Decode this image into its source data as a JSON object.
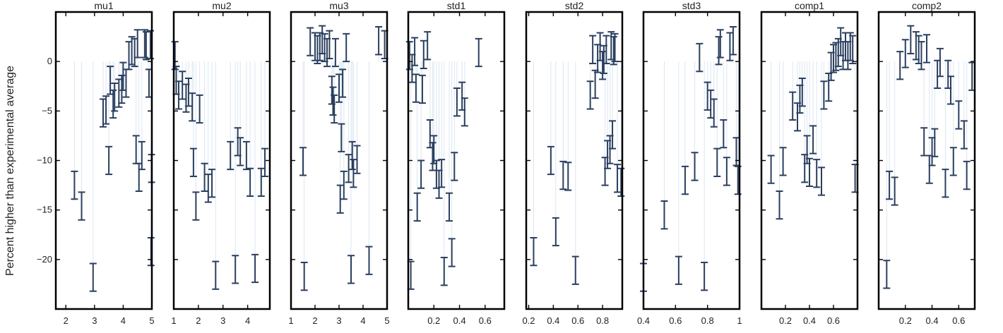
{
  "chart_data": {
    "type": "scatter",
    "title": "",
    "ylabel": "Percent higher than experimental average",
    "ylim": [
      -25,
      5
    ],
    "yticks": [
      0,
      -5,
      -10,
      -15,
      -20
    ],
    "error_bar_halfwidth": 1.4,
    "colors": {
      "marker": "#2a3f5f",
      "stem": "#dce6f2",
      "frame": "#000000"
    },
    "grid": false,
    "panels": [
      {
        "name": "mu1",
        "xlim": [
          1.65,
          5.0
        ],
        "xticks": [
          2,
          3,
          4,
          5
        ],
        "points": [
          [
            2.3,
            -12.5
          ],
          [
            2.55,
            -14.6
          ],
          [
            2.95,
            -21.8
          ],
          [
            3.3,
            -5.2
          ],
          [
            3.4,
            -4.9
          ],
          [
            3.5,
            -10
          ],
          [
            3.55,
            -1.9
          ],
          [
            3.65,
            -4.3
          ],
          [
            3.7,
            -3.6
          ],
          [
            3.85,
            -3.2
          ],
          [
            3.95,
            -2.8
          ],
          [
            4.0,
            -1.5
          ],
          [
            4.1,
            -2.2
          ],
          [
            4.2,
            0.6
          ],
          [
            4.3,
            1.1
          ],
          [
            4.4,
            0.9
          ],
          [
            4.45,
            -8.9
          ],
          [
            4.5,
            1.8
          ],
          [
            4.55,
            -11.7
          ],
          [
            4.65,
            -9.5
          ],
          [
            4.75,
            1.8
          ],
          [
            4.8,
            1.6
          ],
          [
            4.9,
            -2.2
          ],
          [
            4.95,
            1.7
          ],
          [
            4.97,
            -19.2
          ],
          [
            4.99,
            -10.8
          ]
        ]
      },
      {
        "name": "mu2",
        "xlim": [
          1.0,
          4.9
        ],
        "xticks": [
          1,
          2,
          3,
          4
        ],
        "points": [
          [
            1.05,
            0.6
          ],
          [
            1.1,
            -1.9
          ],
          [
            1.2,
            -3.4
          ],
          [
            1.35,
            -2.4
          ],
          [
            1.5,
            -3.7
          ],
          [
            1.6,
            -3.1
          ],
          [
            1.75,
            -4.6
          ],
          [
            1.8,
            -10.2
          ],
          [
            1.9,
            -14.6
          ],
          [
            2.05,
            -4.8
          ],
          [
            2.25,
            -11.7
          ],
          [
            2.4,
            -12.8
          ],
          [
            2.55,
            -12.3
          ],
          [
            2.7,
            -21.6
          ],
          [
            3.3,
            -9.5
          ],
          [
            3.5,
            -21
          ],
          [
            3.6,
            -8.1
          ],
          [
            3.7,
            -9.1
          ],
          [
            3.95,
            -9.5
          ],
          [
            4.1,
            -12.2
          ],
          [
            4.3,
            -20.9
          ],
          [
            4.55,
            -12.2
          ],
          [
            4.7,
            -10.2
          ]
        ]
      },
      {
        "name": "mu3",
        "xlim": [
          1.0,
          5.0
        ],
        "xticks": [
          1,
          2,
          3,
          4,
          5
        ],
        "points": [
          [
            1.5,
            -10.1
          ],
          [
            1.55,
            -21.7
          ],
          [
            1.8,
            2
          ],
          [
            2,
            1.5
          ],
          [
            2.1,
            1.2
          ],
          [
            2.2,
            1.5
          ],
          [
            2.3,
            2.2
          ],
          [
            2.4,
            1.4
          ],
          [
            2.5,
            0.9
          ],
          [
            2.6,
            1.7
          ],
          [
            2.7,
            -2.9
          ],
          [
            2.75,
            -4
          ],
          [
            2.8,
            -4.8
          ],
          [
            2.85,
            0.9
          ],
          [
            3.0,
            -2.7
          ],
          [
            3.05,
            -13.9
          ],
          [
            3.1,
            -7.7
          ],
          [
            3.15,
            -2.2
          ],
          [
            3.2,
            -12.5
          ],
          [
            3.3,
            1.4
          ],
          [
            3.4,
            -10.8
          ],
          [
            3.5,
            -21
          ],
          [
            3.55,
            -9.5
          ],
          [
            3.6,
            -11.3
          ],
          [
            3.75,
            -9.9
          ],
          [
            4.25,
            -20.1
          ],
          [
            4.65,
            2.1
          ],
          [
            4.9,
            1.7
          ]
        ]
      },
      {
        "name": "std1",
        "xlim": [
          0.0,
          0.75
        ],
        "xticks": [
          0.2,
          0.4,
          0.6
        ],
        "points": [
          [
            0.01,
            0.6
          ],
          [
            0.02,
            -21.6
          ],
          [
            0.03,
            -0.7
          ],
          [
            0.05,
            1
          ],
          [
            0.06,
            -2.7
          ],
          [
            0.07,
            -14.7
          ],
          [
            0.1,
            -11.4
          ],
          [
            0.11,
            -2.8
          ],
          [
            0.12,
            0.7
          ],
          [
            0.15,
            1.6
          ],
          [
            0.17,
            -7.3
          ],
          [
            0.19,
            -9.6
          ],
          [
            0.2,
            -8.9
          ],
          [
            0.22,
            -11.4
          ],
          [
            0.24,
            -12.4
          ],
          [
            0.26,
            -11.3
          ],
          [
            0.28,
            -21.2
          ],
          [
            0.32,
            -14.7
          ],
          [
            0.34,
            -19.3
          ],
          [
            0.36,
            -10.6
          ],
          [
            0.38,
            -4.1
          ],
          [
            0.42,
            -3.5
          ],
          [
            0.44,
            -5.1
          ],
          [
            0.55,
            0.9
          ]
        ]
      },
      {
        "name": "std2",
        "xlim": [
          0.18,
          0.96
        ],
        "xticks": [
          0.2,
          0.4,
          0.6,
          0.8
        ],
        "points": [
          [
            0.24,
            -19.2
          ],
          [
            0.38,
            -10
          ],
          [
            0.42,
            -17.2
          ],
          [
            0.48,
            -11.5
          ],
          [
            0.52,
            -11.6
          ],
          [
            0.58,
            -21.1
          ],
          [
            0.7,
            -3.4
          ],
          [
            0.72,
            1.2
          ],
          [
            0.74,
            -2.3
          ],
          [
            0.76,
            0.3
          ],
          [
            0.78,
            1.5
          ],
          [
            0.8,
            -0.4
          ],
          [
            0.81,
            0.2
          ],
          [
            0.82,
            -11.1
          ],
          [
            0.83,
            1.2
          ],
          [
            0.84,
            -9.4
          ],
          [
            0.86,
            -8.9
          ],
          [
            0.87,
            1.6
          ],
          [
            0.88,
            -7.4
          ],
          [
            0.89,
            1.1
          ],
          [
            0.9,
            1.4
          ],
          [
            0.92,
            -11.8
          ],
          [
            0.95,
            -12.2
          ]
        ]
      },
      {
        "name": "std3",
        "xlim": [
          0.4,
          1.0
        ],
        "xticks": [
          0.4,
          0.6,
          0.8,
          1
        ],
        "points": [
          [
            0.4,
            -21.8
          ],
          [
            0.53,
            -15.5
          ],
          [
            0.62,
            -21.1
          ],
          [
            0.66,
            -12
          ],
          [
            0.72,
            -10.6
          ],
          [
            0.75,
            0.4
          ],
          [
            0.78,
            -21.7
          ],
          [
            0.8,
            -3.5
          ],
          [
            0.82,
            -4.3
          ],
          [
            0.84,
            -5.2
          ],
          [
            0.86,
            -10.2
          ],
          [
            0.87,
            1.1
          ],
          [
            0.88,
            1.8
          ],
          [
            0.9,
            -7.3
          ],
          [
            0.92,
            -11.1
          ],
          [
            0.94,
            1.5
          ],
          [
            0.96,
            2.1
          ],
          [
            0.98,
            -9.1
          ],
          [
            0.99,
            -12
          ]
        ]
      },
      {
        "name": "comp1",
        "xlim": [
          0.0,
          0.8
        ],
        "xticks": [
          0.2,
          0.4,
          0.6
        ],
        "points": [
          [
            0.08,
            -10.9
          ],
          [
            0.15,
            -14.5
          ],
          [
            0.18,
            -10.1
          ],
          [
            0.26,
            -4.5
          ],
          [
            0.3,
            -5.6
          ],
          [
            0.32,
            -3.8
          ],
          [
            0.34,
            -3.1
          ],
          [
            0.36,
            -10.8
          ],
          [
            0.38,
            -8.9
          ],
          [
            0.4,
            -11.2
          ],
          [
            0.43,
            -7.9
          ],
          [
            0.46,
            -11.3
          ],
          [
            0.5,
            -12.1
          ],
          [
            0.52,
            -3.4
          ],
          [
            0.56,
            -2.6
          ],
          [
            0.58,
            -0.5
          ],
          [
            0.6,
            0.3
          ],
          [
            0.62,
            0.5
          ],
          [
            0.64,
            0.9
          ],
          [
            0.66,
            2
          ],
          [
            0.68,
            0.6
          ],
          [
            0.7,
            1.5
          ],
          [
            0.72,
            0.6
          ],
          [
            0.74,
            1.5
          ],
          [
            0.76,
            1.2
          ],
          [
            0.78,
            -11.8
          ]
        ]
      },
      {
        "name": "comp2",
        "xlim": [
          0.0,
          0.72
        ],
        "xticks": [
          0.2,
          0.4,
          0.6
        ],
        "points": [
          [
            0.06,
            -21.5
          ],
          [
            0.08,
            -12.5
          ],
          [
            0.12,
            -13.1
          ],
          [
            0.16,
            -0.4
          ],
          [
            0.2,
            0.8
          ],
          [
            0.24,
            2.2
          ],
          [
            0.28,
            1.6
          ],
          [
            0.3,
            1.2
          ],
          [
            0.32,
            0.6
          ],
          [
            0.34,
            -8.1
          ],
          [
            0.36,
            1.3
          ],
          [
            0.38,
            -10.9
          ],
          [
            0.4,
            -9.1
          ],
          [
            0.42,
            -8.2
          ],
          [
            0.44,
            -1.3
          ],
          [
            0.46,
            -0.1
          ],
          [
            0.5,
            -12.3
          ],
          [
            0.52,
            -1.3
          ],
          [
            0.54,
            -2.9
          ],
          [
            0.56,
            -10.1
          ],
          [
            0.6,
            -5.4
          ],
          [
            0.64,
            -7.4
          ],
          [
            0.66,
            -11.5
          ],
          [
            0.7,
            -1.5
          ]
        ]
      }
    ]
  }
}
